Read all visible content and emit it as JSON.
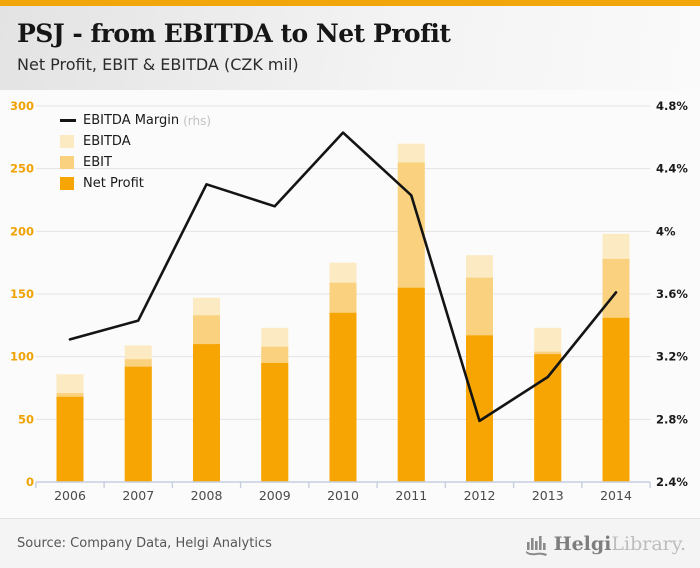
{
  "header": {
    "title": "PSJ - from EBITDA to Net Profit",
    "subtitle": "Net Profit, EBIT & EBITDA (CZK mil)"
  },
  "chart_data": {
    "type": "bar",
    "subtype": "overlaid-bars-with-line",
    "title": "PSJ - from EBITDA to Net Profit",
    "subtitle": "Net Profit, EBIT & EBITDA (CZK mil)",
    "categories": [
      "2006",
      "2007",
      "2008",
      "2009",
      "2010",
      "2011",
      "2012",
      "2013",
      "2014"
    ],
    "series": [
      {
        "name": "EBITDA",
        "type": "bar",
        "axis": "left",
        "color": "#FCEAC2",
        "values": [
          86,
          109,
          147,
          123,
          175,
          270,
          181,
          123,
          198
        ]
      },
      {
        "name": "EBIT",
        "type": "bar",
        "axis": "left",
        "color": "#FAD27F",
        "values": [
          71,
          98,
          133,
          108,
          159,
          255,
          163,
          104,
          178
        ]
      },
      {
        "name": "Net Profit",
        "type": "bar",
        "axis": "left",
        "color": "#F6A502",
        "values": [
          68,
          92,
          110,
          95,
          135,
          155,
          117,
          102,
          131
        ]
      },
      {
        "name": "EBITDA Margin",
        "type": "line",
        "axis": "right",
        "color": "#141414",
        "values": [
          3.31,
          3.43,
          4.3,
          4.16,
          4.63,
          4.23,
          2.79,
          3.07,
          3.61
        ]
      }
    ],
    "left_axis": {
      "ticks": [
        0,
        50,
        100,
        150,
        200,
        250,
        300
      ],
      "range": [
        0,
        300
      ],
      "tick_color": "#F0A202"
    },
    "right_axis": {
      "ticks": [
        "2.4%",
        "2.8%",
        "3.2%",
        "3.6%",
        "4%",
        "4.4%",
        "4.8%"
      ],
      "tick_values": [
        2.4,
        2.8,
        3.2,
        3.6,
        4.0,
        4.4,
        4.8
      ],
      "range": [
        2.4,
        4.8
      ],
      "tick_color": "#1A1A1A"
    },
    "legend": [
      {
        "label": "EBITDA Margin",
        "suffix": "(rhs)",
        "swatch": "line",
        "color": "#141414"
      },
      {
        "label": "EBITDA",
        "suffix": "",
        "swatch": "square",
        "color": "#FCEAC2"
      },
      {
        "label": "EBIT",
        "suffix": "",
        "swatch": "square",
        "color": "#FAD27F"
      },
      {
        "label": "Net Profit",
        "suffix": "",
        "swatch": "square",
        "color": "#F6A502"
      }
    ],
    "grid": "horizontal",
    "legend_position": "top-left-inside",
    "gridline_color": "#E3E3E6",
    "axis_line_color": "#C6CEDF",
    "year_label_color": "#4A4A4A"
  },
  "footer": {
    "source": "Source: Company Data, Helgi Analytics",
    "logo": {
      "main": "Helgi",
      "sub": "Library."
    }
  }
}
